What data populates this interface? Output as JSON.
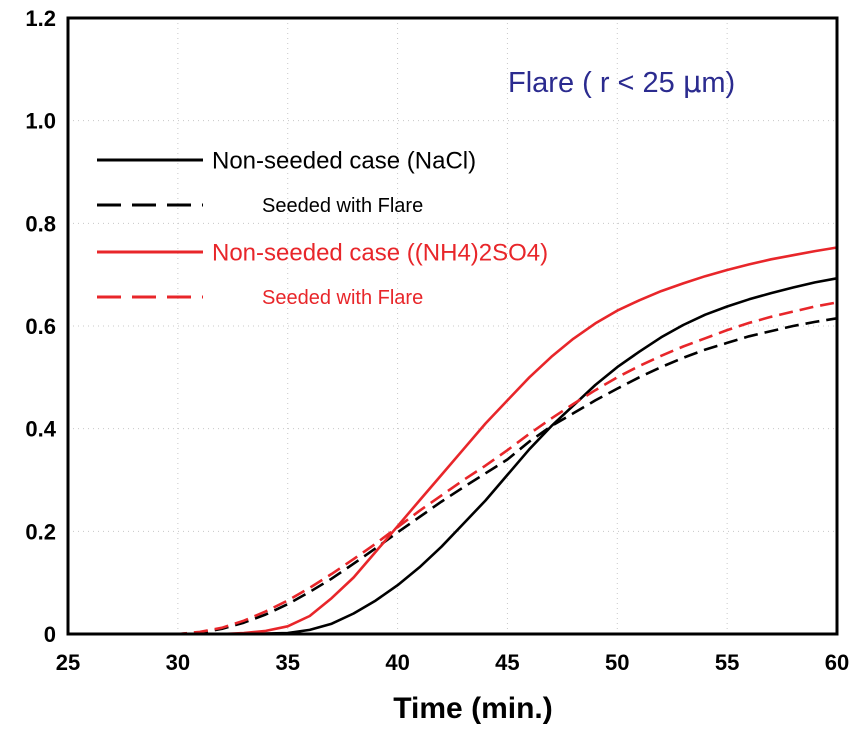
{
  "chart_data": {
    "type": "line",
    "title": "",
    "xlabel": "Time (min.)",
    "ylabel": "",
    "xlim": [
      25,
      60
    ],
    "ylim": [
      0,
      1.2
    ],
    "x_ticks": [
      25,
      30,
      35,
      40,
      45,
      50,
      55,
      60
    ],
    "y_ticks": [
      0,
      0.2,
      0.4,
      0.6,
      0.8,
      1.0,
      1.2
    ],
    "y_tick_labels": [
      "0",
      "0.2",
      "0.4",
      "0.6",
      "0.8",
      "1.0",
      "1.2"
    ],
    "x_tick_labels": [
      "25",
      "30",
      "35",
      "40",
      "45",
      "50",
      "55",
      "60"
    ],
    "grid": true,
    "legend_position": "upper-left",
    "annotation": {
      "prefix": "Flare ( r < 25 ",
      "greek": "μ",
      "suffix": "m)",
      "color": "#2b2b8f"
    },
    "series": [
      {
        "name": "Non-seeded case (NaCl)",
        "color": "#000000",
        "dash": "solid",
        "x": [
          25,
          30,
          33,
          35,
          36,
          37,
          38,
          39,
          40,
          41,
          42,
          43,
          44,
          45,
          46,
          47,
          48,
          49,
          50,
          51,
          52,
          53,
          54,
          55,
          56,
          57,
          58,
          59,
          60
        ],
        "y": [
          0,
          0,
          0,
          0.002,
          0.008,
          0.02,
          0.04,
          0.065,
          0.095,
          0.13,
          0.17,
          0.215,
          0.26,
          0.31,
          0.36,
          0.405,
          0.445,
          0.485,
          0.52,
          0.55,
          0.578,
          0.602,
          0.622,
          0.638,
          0.652,
          0.664,
          0.675,
          0.685,
          0.693
        ]
      },
      {
        "name": "Seeded with Flare",
        "color": "#000000",
        "dash": "dashed",
        "x": [
          25,
          30,
          31,
          32,
          33,
          34,
          35,
          36,
          37,
          38,
          39,
          40,
          41,
          42,
          43,
          44,
          45,
          46,
          47,
          48,
          49,
          50,
          51,
          52,
          53,
          54,
          55,
          56,
          57,
          58,
          59,
          60
        ],
        "y": [
          0,
          0,
          0.003,
          0.01,
          0.022,
          0.038,
          0.058,
          0.082,
          0.108,
          0.137,
          0.167,
          0.198,
          0.228,
          0.258,
          0.286,
          0.313,
          0.34,
          0.375,
          0.405,
          0.43,
          0.455,
          0.478,
          0.5,
          0.52,
          0.538,
          0.554,
          0.567,
          0.58,
          0.59,
          0.6,
          0.608,
          0.615
        ]
      },
      {
        "name": "Non-seeded case ((NH4)2SO4)",
        "color": "#e8262a",
        "dash": "solid",
        "x": [
          25,
          30,
          32,
          33,
          34,
          35,
          36,
          37,
          38,
          39,
          40,
          41,
          42,
          43,
          44,
          45,
          46,
          47,
          48,
          49,
          50,
          51,
          52,
          53,
          54,
          55,
          56,
          57,
          58,
          59,
          60
        ],
        "y": [
          0,
          0,
          0,
          0.002,
          0.006,
          0.015,
          0.035,
          0.07,
          0.11,
          0.16,
          0.21,
          0.26,
          0.31,
          0.36,
          0.41,
          0.455,
          0.5,
          0.54,
          0.575,
          0.605,
          0.63,
          0.65,
          0.668,
          0.683,
          0.697,
          0.709,
          0.72,
          0.73,
          0.738,
          0.746,
          0.753
        ]
      },
      {
        "name": "Seeded with Flare",
        "color": "#e8262a",
        "dash": "dashed",
        "x": [
          25,
          30,
          31,
          32,
          33,
          34,
          35,
          36,
          37,
          38,
          39,
          40,
          41,
          42,
          43,
          44,
          45,
          46,
          47,
          48,
          49,
          50,
          51,
          52,
          53,
          54,
          55,
          56,
          57,
          58,
          59,
          60
        ],
        "y": [
          0,
          0,
          0.004,
          0.012,
          0.026,
          0.044,
          0.065,
          0.09,
          0.117,
          0.146,
          0.176,
          0.208,
          0.24,
          0.27,
          0.3,
          0.328,
          0.358,
          0.39,
          0.42,
          0.448,
          0.475,
          0.5,
          0.522,
          0.542,
          0.56,
          0.576,
          0.592,
          0.606,
          0.618,
          0.628,
          0.638,
          0.646
        ]
      }
    ],
    "legend": [
      {
        "label": "Non-seeded case (NaCl)",
        "color": "#000000",
        "dash": "solid",
        "size": "large"
      },
      {
        "label": "Seeded with Flare",
        "color": "#000000",
        "dash": "dashed",
        "size": "small"
      },
      {
        "label": "Non-seeded case ((NH4)2SO4)",
        "color": "#e8262a",
        "dash": "solid",
        "size": "large"
      },
      {
        "label": "Seeded with Flare",
        "color": "#e8262a",
        "dash": "dashed",
        "size": "small"
      }
    ]
  }
}
